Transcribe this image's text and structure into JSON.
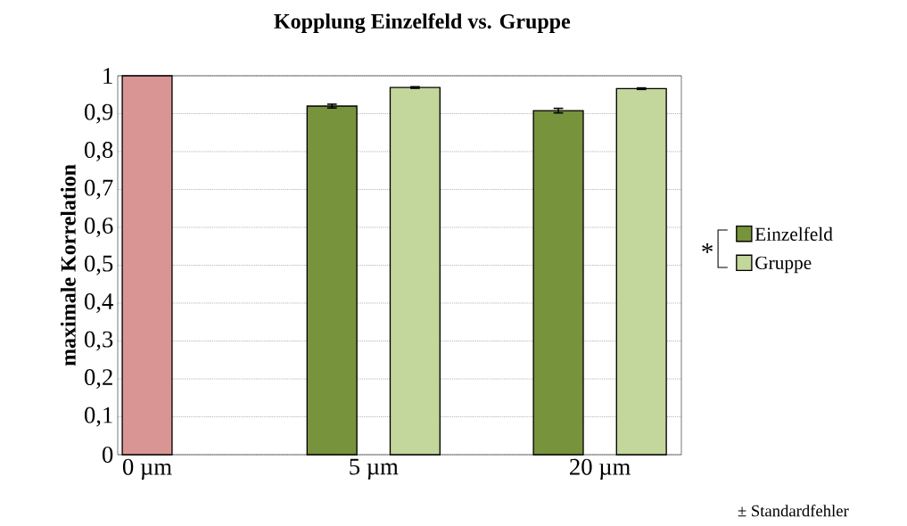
{
  "chart_data": {
    "type": "bar",
    "title": "Kopplung Einzelfeld vs. Gruppe",
    "ylabel": "maximale Korrelation",
    "categories": [
      "0 µm",
      "5 µm",
      "20 µm"
    ],
    "series": [
      {
        "color": "#d99594",
        "values": [
          1,
          null,
          null
        ]
      },
      {
        "name": "Einzelfeld",
        "color": "#77933c",
        "values": [
          null,
          0.92,
          0.908
        ],
        "errors": [
          null,
          0.005,
          0.006
        ]
      },
      {
        "name": "Gruppe",
        "color": "#c3d69b",
        "values": [
          null,
          0.969,
          0.966
        ],
        "errors": [
          null,
          0.002,
          0.002
        ]
      }
    ],
    "ylim": [
      0,
      1
    ],
    "yticks": [
      0,
      {
        "value": 0.1,
        "label": "0,1"
      },
      {
        "value": 0.2,
        "label": "0,2"
      },
      {
        "value": 0.3,
        "label": "0,3"
      },
      {
        "value": 0.4,
        "label": "0,4"
      },
      {
        "value": 0.5,
        "label": "0,5"
      },
      {
        "value": 0.6,
        "label": "0,6"
      },
      {
        "value": 0.7,
        "label": "0,7"
      },
      {
        "value": 0.8,
        "label": "0,8"
      },
      {
        "value": 0.9,
        "label": "0,9"
      },
      1
    ],
    "grid": "y",
    "legend": "right",
    "annotations": [
      "*",
      "± Standardfehler"
    ]
  }
}
